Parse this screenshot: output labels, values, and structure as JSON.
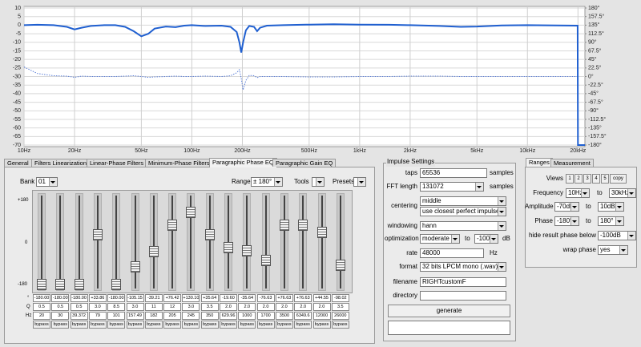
{
  "chart_data": {
    "type": "line",
    "log_x": true,
    "grid": true,
    "x": [
      10,
      12,
      15,
      18,
      20,
      22,
      25,
      30,
      35,
      40,
      45,
      50,
      55,
      60,
      70,
      80,
      90,
      100,
      120,
      150,
      170,
      185,
      192,
      197,
      202,
      210,
      220,
      235,
      245,
      255,
      280,
      350,
      500,
      700,
      1000,
      1500,
      2000,
      3000,
      4000,
      5000,
      7000,
      10000,
      15000,
      19900,
      20000,
      22000
    ],
    "series": [
      {
        "color": "#1f5fd0",
        "style": "solid",
        "values": [
          0,
          0.2,
          0,
          -1,
          -2.5,
          -1.5,
          -0.5,
          0,
          0,
          -1,
          -3.5,
          -6.5,
          -5,
          -2,
          -0.8,
          -1.2,
          -0.3,
          0,
          -0.5,
          -0.3,
          -1,
          -4,
          -10,
          -16,
          -10,
          -3,
          -0.5,
          -1,
          -3.5,
          -1.5,
          -0.3,
          0,
          0.3,
          0.5,
          0.3,
          0.2,
          0,
          -0.5,
          -1,
          -0.8,
          -0.2,
          0,
          -0.2,
          -0.3,
          -70,
          -70
        ]
      },
      {
        "color": "#5b7fd8",
        "style": "dotted",
        "axis": "y2",
        "values": [
          25,
          8,
          2,
          1,
          -2,
          1,
          0,
          0,
          0,
          1,
          2,
          0,
          -2,
          -1,
          0,
          1,
          0,
          0,
          1,
          0,
          2,
          10,
          18,
          -5,
          -35,
          -10,
          3,
          2,
          -3,
          0,
          0,
          0,
          -1,
          -1,
          0,
          0,
          1,
          1,
          0,
          0,
          0,
          0,
          0,
          0,
          null,
          null
        ]
      }
    ],
    "xlim": [
      10,
      22000
    ],
    "xticks": [
      {
        "value": 10,
        "label": "10Hz"
      },
      {
        "value": 20,
        "label": "20Hz"
      },
      {
        "value": 50,
        "label": "50Hz"
      },
      {
        "value": 100,
        "label": "100Hz"
      },
      {
        "value": 200,
        "label": "200Hz"
      },
      {
        "value": 500,
        "label": "500Hz"
      },
      {
        "value": 1000,
        "label": "1kHz"
      },
      {
        "value": 2000,
        "label": "2kHz"
      },
      {
        "value": 5000,
        "label": "5kHz"
      },
      {
        "value": 10000,
        "label": "10kHz"
      },
      {
        "value": 20000,
        "label": "20kHz"
      }
    ],
    "ylim": [
      -70,
      10
    ],
    "yticks": [
      10,
      5,
      0,
      -5,
      -10,
      -15,
      -20,
      -25,
      -30,
      -35,
      -40,
      -45,
      -50,
      -55,
      -60,
      -65,
      -70
    ],
    "y2lim": [
      -180,
      180
    ],
    "y2ticks": [
      {
        "value": 180,
        "label": "180°"
      },
      {
        "value": 157.5,
        "label": "157.5°"
      },
      {
        "value": 135,
        "label": "135°"
      },
      {
        "value": 112.5,
        "label": "112.5°"
      },
      {
        "value": 90,
        "label": "90°"
      },
      {
        "value": 67.5,
        "label": "67.5°"
      },
      {
        "value": 45,
        "label": "45°"
      },
      {
        "value": 22.5,
        "label": "22.5°"
      },
      {
        "value": 0,
        "label": "0°"
      },
      {
        "value": -22.5,
        "label": "-22.5°"
      },
      {
        "value": -45,
        "label": "-45°"
      },
      {
        "value": -67.5,
        "label": "-67.5°"
      },
      {
        "value": -90,
        "label": "-90°"
      },
      {
        "value": -112.5,
        "label": "-112.5°"
      },
      {
        "value": -135,
        "label": "-135°"
      },
      {
        "value": -157.5,
        "label": "-157.5°"
      },
      {
        "value": -180,
        "label": "-180°"
      }
    ]
  },
  "tabs": [
    "General",
    "Filters Linearization",
    "Linear-Phase Filters",
    "Minimum-Phase Filters",
    "Paragraphic Phase EQ",
    "Paragraphic Gain EQ"
  ],
  "active_tab": 4,
  "eq": {
    "bank_label": "Bank",
    "bank": "01",
    "range_label": "Range",
    "range": "± 180°",
    "tools": "Tools",
    "presets": "Presets",
    "scale": [
      "+180",
      "0",
      "-180"
    ],
    "row_labels": [
      "°",
      "Q",
      "Hz"
    ],
    "bands": [
      {
        "gain": "-180.00",
        "q": "0.5",
        "hz": "20",
        "bypass": "bypass"
      },
      {
        "gain": "-180.00",
        "q": "0.5",
        "hz": "30",
        "bypass": "bypass"
      },
      {
        "gain": "-180.00",
        "q": "0.5",
        "hz": "39.372",
        "bypass": "bypass"
      },
      {
        "gain": "+33.86",
        "q": "3.0",
        "hz": "79",
        "bypass": "bypass"
      },
      {
        "gain": "-180.00",
        "q": "8.5",
        "hz": "101",
        "bypass": "bypass"
      },
      {
        "gain": "-105.15",
        "q": "3.0",
        "hz": "157.49",
        "bypass": "bypass"
      },
      {
        "gain": "-39.21",
        "q": "11",
        "hz": "182",
        "bypass": "bypass"
      },
      {
        "gain": "+76.42",
        "q": "12",
        "hz": "205",
        "bypass": "bypass"
      },
      {
        "gain": "+130.10",
        "q": "3.0",
        "hz": "245",
        "bypass": "bypass"
      },
      {
        "gain": "+35.64",
        "q": "3.5",
        "hz": "350",
        "bypass": "bypass"
      },
      {
        "gain": "-19.60",
        "q": "2.0",
        "hz": "629.96",
        "bypass": "bypass"
      },
      {
        "gain": "-35.64",
        "q": "2.0",
        "hz": "1000",
        "bypass": "bypass"
      },
      {
        "gain": "-76.63",
        "q": "2.0",
        "hz": "1700",
        "bypass": "bypass"
      },
      {
        "gain": "+76.63",
        "q": "2.0",
        "hz": "3500",
        "bypass": "bypass"
      },
      {
        "gain": "+76.63",
        "q": "2.0",
        "hz": "6349.6",
        "bypass": "bypass"
      },
      {
        "gain": "+44.55",
        "q": "2.0",
        "hz": "12000",
        "bypass": "bypass"
      },
      {
        "gain": "-98.02",
        "q": "3.5",
        "hz": "26000",
        "bypass": "bypass"
      }
    ]
  },
  "impulse": {
    "title": "Impulse Settings",
    "taps": {
      "label": "taps",
      "value": "65536",
      "unit": "samples"
    },
    "fft": {
      "label": "FFT length",
      "value": "131072",
      "unit": "samples"
    },
    "centering": {
      "label": "centering",
      "value": "middle",
      "option": "use closest perfect impulse"
    },
    "windowing": {
      "label": "windowing",
      "value": "hann"
    },
    "optimization": {
      "label": "optimization",
      "value": "moderate",
      "to_label": "to",
      "to": "-100",
      "unit": "dB"
    },
    "rate": {
      "label": "rate",
      "value": "48000",
      "unit": "Hz"
    },
    "format": {
      "label": "format",
      "value": "32 bits LPCM mono (.wav)"
    },
    "filename": {
      "label": "filename",
      "value": "RIGHTcustomF"
    },
    "directory": {
      "label": "directory"
    },
    "generate": "generate"
  },
  "ranges": {
    "tabs": [
      "Ranges",
      "Measurement"
    ],
    "views_label": "Views",
    "views": [
      "1",
      "2",
      "3",
      "4",
      "5",
      "copy"
    ],
    "frequency": {
      "label": "Frequency",
      "from": "10Hz",
      "to_label": "to",
      "to": "30kHz"
    },
    "amplitude": {
      "label": "Amplitude",
      "from": "-70dB",
      "to_label": "to",
      "to": "10dB"
    },
    "phase": {
      "label": "Phase",
      "from": "-180°",
      "to_label": "to",
      "to": "180°"
    },
    "hide": {
      "label": "hide result phase below",
      "value": "-100dB"
    },
    "wrap": {
      "label": "wrap phase",
      "value": "yes"
    }
  }
}
